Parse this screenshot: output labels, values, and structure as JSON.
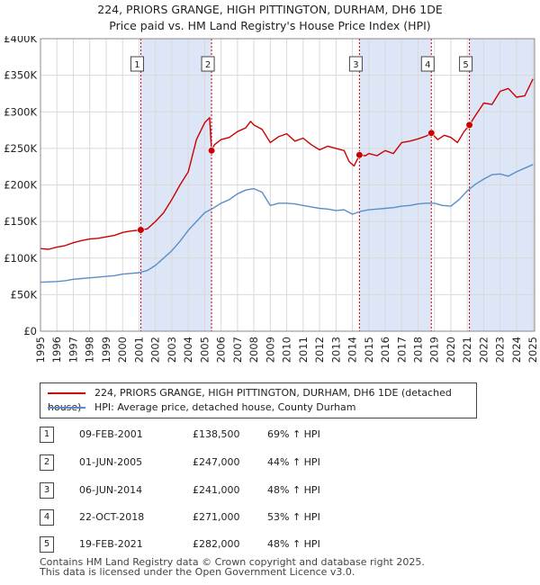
{
  "header": {
    "title_line1": "224, PRIORS GRANGE, HIGH PITTINGTON, DURHAM, DH6 1DE",
    "title_line2": "Price paid vs. HM Land Registry's House Price Index (HPI)"
  },
  "colors": {
    "property": "#cc0000",
    "hpi": "#5b8ec9",
    "shade": "#dde6f7",
    "marker_line": "#cc0000"
  },
  "legend": {
    "property_label": "224, PRIORS GRANGE, HIGH PITTINGTON, DURHAM, DH6 1DE (detached house)",
    "hpi_label": "HPI: Average price, detached house, County Durham"
  },
  "sales": [
    {
      "num": "1",
      "date": "09-FEB-2001",
      "price": "£138,500",
      "hpi": "69% ↑ HPI"
    },
    {
      "num": "2",
      "date": "01-JUN-2005",
      "price": "£247,000",
      "hpi": "44% ↑ HPI"
    },
    {
      "num": "3",
      "date": "06-JUN-2014",
      "price": "£241,000",
      "hpi": "48% ↑ HPI"
    },
    {
      "num": "4",
      "date": "22-OCT-2018",
      "price": "£271,000",
      "hpi": "53% ↑ HPI"
    },
    {
      "num": "5",
      "date": "19-FEB-2021",
      "price": "£282,000",
      "hpi": "48% ↑ HPI"
    }
  ],
  "footer": {
    "line1": "Contains HM Land Registry data © Crown copyright and database right 2025.",
    "line2": "This data is licensed under the Open Government Licence v3.0."
  },
  "chart_data": {
    "type": "line",
    "title": "224, PRIORS GRANGE, HIGH PITTINGTON, DURHAM, DH6 1DE",
    "subtitle": "Price paid vs. HM Land Registry's House Price Index (HPI)",
    "xlabel": "",
    "ylabel": "",
    "xlim": [
      1995,
      2025.1
    ],
    "ylim": [
      0,
      400000
    ],
    "grid": true,
    "legend_position": "below",
    "x_ticks": [
      1995,
      1996,
      1997,
      1998,
      1999,
      2000,
      2001,
      2002,
      2003,
      2004,
      2005,
      2006,
      2007,
      2008,
      2009,
      2010,
      2011,
      2012,
      2013,
      2014,
      2015,
      2016,
      2017,
      2018,
      2019,
      2020,
      2021,
      2022,
      2023,
      2024,
      2025
    ],
    "y_ticks": [
      {
        "value": 0,
        "label": "£0"
      },
      {
        "value": 50000,
        "label": "£50K"
      },
      {
        "value": 100000,
        "label": "£100K"
      },
      {
        "value": 150000,
        "label": "£150K"
      },
      {
        "value": 200000,
        "label": "£200K"
      },
      {
        "value": 250000,
        "label": "£250K"
      },
      {
        "value": 300000,
        "label": "£300K"
      },
      {
        "value": 350000,
        "label": "£350K"
      },
      {
        "value": 400000,
        "label": "£400K"
      }
    ],
    "shaded_ranges": [
      [
        2001.11,
        2005.42
      ],
      [
        2014.43,
        2018.81
      ],
      [
        2021.13,
        2025.1
      ]
    ],
    "sale_markers": [
      {
        "label": "1",
        "x": 2001.11,
        "y": 138500
      },
      {
        "label": "2",
        "x": 2005.42,
        "y": 247000
      },
      {
        "label": "3",
        "x": 2014.43,
        "y": 241000
      },
      {
        "label": "4",
        "x": 2018.81,
        "y": 271000
      },
      {
        "label": "5",
        "x": 2021.13,
        "y": 282000
      }
    ],
    "series": [
      {
        "name": "224, PRIORS GRANGE, HIGH PITTINGTON, DURHAM, DH6 1DE (detached house)",
        "color": "#cc0000",
        "x": [
          1995,
          1995.5,
          1996,
          1996.5,
          1997,
          1997.5,
          1998,
          1998.5,
          1999,
          1999.5,
          2000,
          2000.5,
          2001.11,
          2001.5,
          2002,
          2002.5,
          2003,
          2003.5,
          2004,
          2004.5,
          2005,
          2005.3,
          2005.42,
          2005.6,
          2006,
          2006.5,
          2007,
          2007.5,
          2007.8,
          2008,
          2008.5,
          2009,
          2009.5,
          2010,
          2010.5,
          2011,
          2011.5,
          2012,
          2012.5,
          2013,
          2013.5,
          2013.8,
          2014.1,
          2014.43,
          2014.8,
          2015,
          2015.5,
          2016,
          2016.5,
          2017,
          2017.5,
          2018,
          2018.5,
          2018.81,
          2019.2,
          2019.6,
          2020,
          2020.4,
          2020.8,
          2021.13,
          2021.5,
          2022,
          2022.5,
          2023,
          2023.5,
          2024,
          2024.5,
          2025
        ],
        "y": [
          113000,
          112000,
          115000,
          117000,
          121000,
          124000,
          126000,
          127000,
          129000,
          131000,
          135000,
          137000,
          138500,
          140000,
          150000,
          162000,
          180000,
          200000,
          218000,
          262000,
          285000,
          292000,
          247000,
          255000,
          262000,
          265000,
          273000,
          278000,
          287000,
          282000,
          276000,
          258000,
          266000,
          270000,
          260000,
          264000,
          255000,
          248000,
          253000,
          250000,
          247000,
          232000,
          226000,
          241000,
          240000,
          243000,
          240000,
          247000,
          243000,
          258000,
          260000,
          263000,
          267000,
          271000,
          262000,
          268000,
          265000,
          258000,
          273000,
          282000,
          295000,
          312000,
          310000,
          328000,
          332000,
          320000,
          322000,
          345000
        ]
      },
      {
        "name": "HPI: Average price, detached house, County Durham",
        "color": "#5b8ec9",
        "x": [
          1995,
          1995.5,
          1996,
          1996.5,
          1997,
          1997.5,
          1998,
          1998.5,
          1999,
          1999.5,
          2000,
          2000.5,
          2001,
          2001.5,
          2002,
          2002.5,
          2003,
          2003.5,
          2004,
          2004.5,
          2005,
          2005.5,
          2006,
          2006.5,
          2007,
          2007.5,
          2008,
          2008.5,
          2009,
          2009.5,
          2010,
          2010.5,
          2011,
          2011.5,
          2012,
          2012.5,
          2013,
          2013.5,
          2014,
          2014.5,
          2015,
          2015.5,
          2016,
          2016.5,
          2017,
          2017.5,
          2018,
          2018.5,
          2019,
          2019.5,
          2020,
          2020.5,
          2021,
          2021.5,
          2022,
          2022.5,
          2023,
          2023.5,
          2024,
          2024.5,
          2025
        ],
        "y": [
          67000,
          67500,
          68000,
          69000,
          71000,
          72000,
          73000,
          74000,
          75000,
          76000,
          78000,
          79000,
          80000,
          83000,
          90000,
          100000,
          110000,
          123000,
          138000,
          150000,
          162000,
          168000,
          175000,
          180000,
          188000,
          193000,
          195000,
          190000,
          172000,
          175000,
          175000,
          174000,
          172000,
          170000,
          168000,
          167000,
          165000,
          166000,
          160000,
          164000,
          166000,
          167000,
          168000,
          169000,
          171000,
          172000,
          174000,
          175000,
          175000,
          172000,
          171000,
          180000,
          192000,
          201000,
          208000,
          214000,
          215000,
          212000,
          218000,
          223000,
          228000
        ]
      }
    ]
  }
}
